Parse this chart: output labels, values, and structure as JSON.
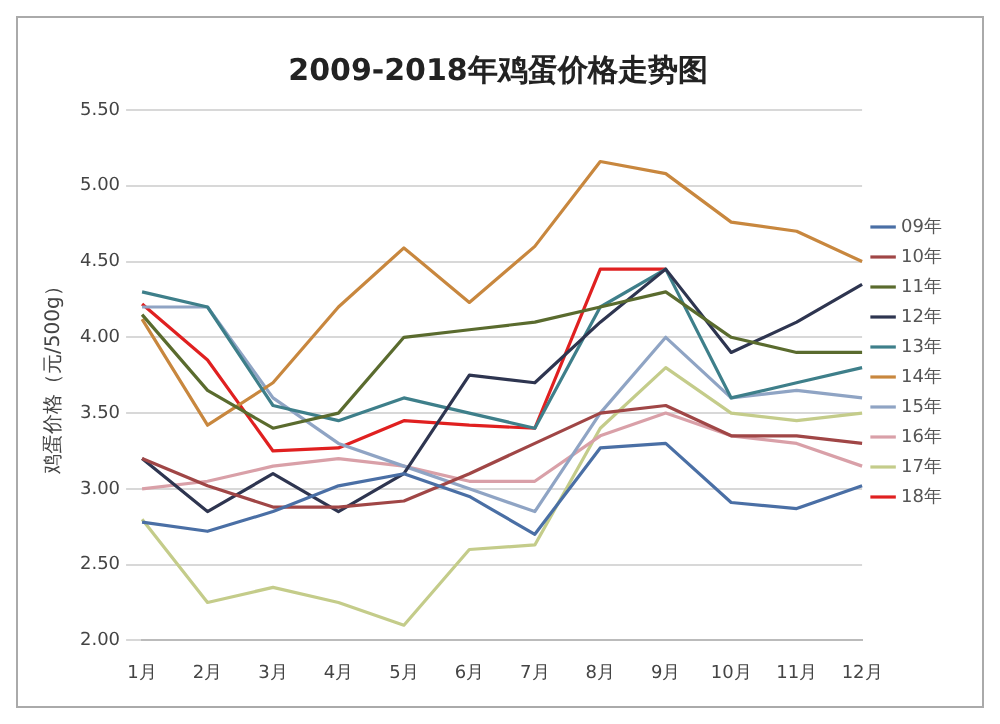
{
  "chart_data": {
    "type": "line",
    "title": "2009-2018年鸡蛋价格走势图",
    "ylabel": "鸡蛋价格（元/500g）",
    "categories": [
      "1月",
      "2月",
      "3月",
      "4月",
      "5月",
      "6月",
      "7月",
      "8月",
      "9月",
      "10月",
      "11月",
      "12月"
    ],
    "series": [
      {
        "name": "09年",
        "color": "#4a6fa5",
        "values": [
          2.78,
          2.72,
          2.85,
          3.02,
          3.1,
          2.95,
          2.7,
          3.27,
          3.3,
          2.91,
          2.87,
          3.02
        ]
      },
      {
        "name": "10年",
        "color": "#a04646",
        "values": [
          3.2,
          3.02,
          2.88,
          2.88,
          2.92,
          3.1,
          3.3,
          3.5,
          3.55,
          3.35,
          3.35,
          3.3
        ]
      },
      {
        "name": "11年",
        "color": "#5a6b2e",
        "values": [
          4.15,
          3.65,
          3.4,
          3.5,
          4.0,
          4.05,
          4.1,
          4.2,
          4.3,
          4.0,
          3.9,
          3.9
        ]
      },
      {
        "name": "12年",
        "color": "#2e3550",
        "values": [
          3.2,
          2.85,
          3.1,
          2.85,
          3.1,
          3.75,
          3.7,
          4.1,
          4.45,
          3.9,
          4.1,
          4.35
        ]
      },
      {
        "name": "13年",
        "color": "#3e7f8a",
        "values": [
          4.3,
          4.2,
          3.55,
          3.45,
          3.6,
          3.5,
          3.4,
          4.2,
          4.45,
          3.6,
          3.7,
          3.8
        ]
      },
      {
        "name": "14年",
        "color": "#c8873e",
        "values": [
          4.12,
          3.42,
          3.7,
          4.2,
          4.59,
          4.23,
          4.6,
          5.16,
          5.08,
          4.76,
          4.7,
          4.5
        ]
      },
      {
        "name": "15年",
        "color": "#8fa4c4",
        "values": [
          4.2,
          4.2,
          3.6,
          3.3,
          3.15,
          3.0,
          2.85,
          3.5,
          4.0,
          3.6,
          3.65,
          3.6
        ]
      },
      {
        "name": "16年",
        "color": "#d9a0a8",
        "values": [
          3.0,
          3.05,
          3.15,
          3.2,
          3.15,
          3.05,
          3.05,
          3.35,
          3.5,
          3.35,
          3.3,
          3.15
        ]
      },
      {
        "name": "17年",
        "color": "#c4cc8a",
        "values": [
          2.8,
          2.25,
          2.35,
          2.25,
          2.1,
          2.6,
          2.63,
          3.4,
          3.8,
          3.5,
          3.45,
          3.5
        ]
      },
      {
        "name": "18年",
        "color": "#e02020",
        "values": [
          4.22,
          3.85,
          3.25,
          3.27,
          3.45,
          3.42,
          3.4,
          4.45,
          4.45,
          null,
          null,
          null
        ]
      }
    ],
    "ylim": [
      2,
      5.5
    ],
    "yticks": [
      {
        "value": 2,
        "label": "2.00"
      },
      {
        "value": 2.5,
        "label": "2.50"
      },
      {
        "value": 3,
        "label": "3.00"
      },
      {
        "value": 3.5,
        "label": "3.50"
      },
      {
        "value": 4,
        "label": "4.00"
      },
      {
        "value": 4.5,
        "label": "4.50"
      },
      {
        "value": 5,
        "label": "5.00"
      },
      {
        "value": 5.5,
        "label": "5.50"
      }
    ],
    "grid": "y",
    "legend": "right",
    "marker": "none",
    "line_style": "solid"
  }
}
